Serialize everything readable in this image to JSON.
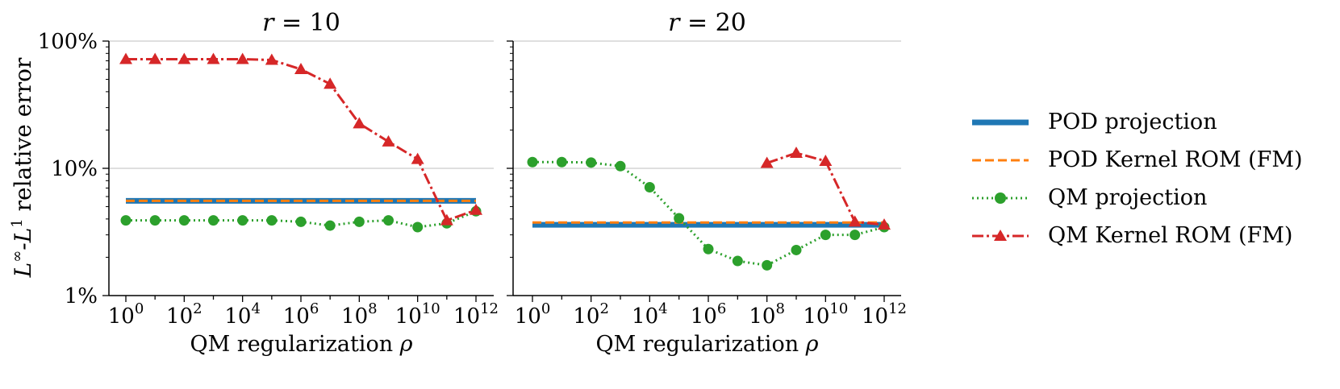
{
  "colors": {
    "pod_projection": "#1f77b4",
    "pod_kernel_rom": "#ff7f0e",
    "qm_projection": "#2ca02c",
    "qm_kernel_rom": "#d62728",
    "grid": "#cccccc"
  },
  "chart_data": [
    {
      "type": "line",
      "title": "r = 10",
      "xscale": "log",
      "yscale": "log",
      "xlabel": "QM regularization ρ",
      "ylabel": "L∞-L1 relative error",
      "xlim": [
        1,
        1000000000000
      ],
      "ylim": [
        0.01,
        1.0
      ],
      "grid": "y-major",
      "x": [
        1,
        10,
        100,
        1000,
        10000,
        100000,
        1000000,
        10000000,
        100000000,
        1000000000,
        10000000000,
        100000000000,
        1000000000000
      ],
      "series": [
        {
          "name": "POD projection",
          "style": "solid",
          "values": [
            0.0555,
            0.0555,
            0.0555,
            0.0555,
            0.0555,
            0.0555,
            0.0555,
            0.0555,
            0.0555,
            0.0555,
            0.0555,
            0.0555,
            0.0555
          ]
        },
        {
          "name": "POD Kernel ROM (FM)",
          "style": "dashed",
          "values": [
            0.0555,
            0.0555,
            0.0555,
            0.0555,
            0.0555,
            0.0555,
            0.0555,
            0.0555,
            0.0555,
            0.0555,
            0.0555,
            0.0555,
            0.0555
          ]
        },
        {
          "name": "QM projection",
          "style": "dotted",
          "marker": "circle",
          "values": [
            0.039,
            0.039,
            0.039,
            0.039,
            0.039,
            0.039,
            0.038,
            0.0355,
            0.038,
            0.039,
            0.0345,
            0.037,
            0.046
          ]
        },
        {
          "name": "QM Kernel ROM (FM)",
          "style": "dashdot",
          "marker": "triangle",
          "values": [
            0.72,
            0.72,
            0.72,
            0.72,
            0.72,
            0.71,
            0.6,
            0.46,
            0.225,
            0.162,
            0.118,
            0.039,
            0.047
          ]
        }
      ]
    },
    {
      "type": "line",
      "title": "r = 20",
      "xscale": "log",
      "yscale": "log",
      "xlabel": "QM regularization ρ",
      "ylabel": "",
      "xlim": [
        1,
        1000000000000
      ],
      "ylim": [
        0.01,
        1.0
      ],
      "grid": "y-major",
      "x": [
        1,
        10,
        100,
        1000,
        10000,
        100000,
        1000000,
        10000000,
        100000000,
        1000000000,
        10000000000,
        100000000000,
        1000000000000
      ],
      "series": [
        {
          "name": "POD projection",
          "style": "solid",
          "values": [
            0.036,
            0.036,
            0.036,
            0.036,
            0.036,
            0.036,
            0.036,
            0.036,
            0.036,
            0.036,
            0.036,
            0.036,
            0.036
          ]
        },
        {
          "name": "POD Kernel ROM (FM)",
          "style": "dashed",
          "values": [
            0.0375,
            0.0375,
            0.0375,
            0.0375,
            0.0375,
            0.0375,
            0.0375,
            0.0375,
            0.0375,
            0.0375,
            0.0375,
            0.0375,
            0.0375
          ]
        },
        {
          "name": "QM projection",
          "style": "dotted",
          "marker": "circle",
          "values": [
            0.112,
            0.112,
            0.111,
            0.104,
            0.071,
            0.0405,
            0.0232,
            0.0187,
            0.0173,
            0.0228,
            0.03,
            0.03,
            0.0345
          ]
        },
        {
          "name": "QM Kernel ROM (FM)",
          "style": "dashdot",
          "marker": "triangle",
          "values": [
            null,
            null,
            null,
            null,
            null,
            null,
            null,
            null,
            0.11,
            0.132,
            0.114,
            0.038,
            0.036
          ]
        }
      ]
    }
  ],
  "axes_text": {
    "y_ticks": [
      "100%",
      "10%",
      "1%"
    ],
    "x_tick_base": "10",
    "x_tick_exponents": [
      "0",
      "2",
      "4",
      "6",
      "8",
      "10",
      "12"
    ],
    "ylabel_main": "L",
    "ylabel_sup1": "∞",
    "ylabel_mid": "-L",
    "ylabel_sup2": "1",
    "ylabel_tail": " relative error",
    "panel_titles": [
      {
        "var": "r",
        "rest": " = 10"
      },
      {
        "var": "r",
        "rest": " = 20"
      }
    ],
    "xlabel_main": "QM regularization ",
    "xlabel_var": "ρ"
  },
  "legend": {
    "placement": "right",
    "items": [
      "POD projection",
      "POD Kernel ROM (FM)",
      "QM projection",
      "QM Kernel ROM (FM)"
    ]
  }
}
